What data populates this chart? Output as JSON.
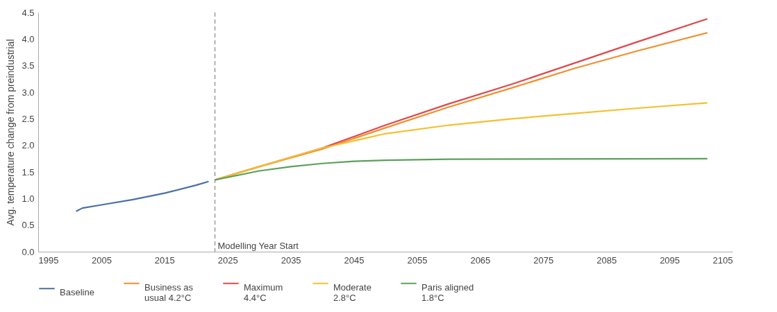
{
  "chart_data": {
    "type": "line",
    "ylabel": "Avg. temperature change from preindustrial",
    "xlim": [
      1995,
      2105
    ],
    "xticks": [
      1995,
      2005,
      2015,
      2025,
      2035,
      2045,
      2055,
      2065,
      2075,
      2085,
      2095,
      2105
    ],
    "ylim": [
      0,
      4.5
    ],
    "yticks": [
      {
        "value": 0,
        "label": "0.0"
      },
      0.5,
      {
        "value": 1,
        "label": "1.0"
      },
      1.5,
      {
        "value": 2,
        "label": "2.0"
      },
      2.5,
      {
        "value": 3,
        "label": "3.0"
      },
      3.5,
      {
        "value": 4,
        "label": "4.0"
      },
      4.5
    ],
    "grid": false,
    "legend": "bottom",
    "line_style": "solid",
    "ref_lines": [
      {
        "axis": "x",
        "value": 2023,
        "label": "Modelling Year Start",
        "color": "#888888",
        "line_style": "dashed"
      }
    ],
    "series": [
      {
        "name": "Baseline",
        "color": "#4a6fa5",
        "x": [
          2001,
          2002,
          2005,
          2010,
          2015,
          2020,
          2022
        ],
        "values": [
          0.76,
          0.82,
          0.88,
          0.98,
          1.1,
          1.25,
          1.32
        ]
      },
      {
        "name": "Business as usual 4.2°C",
        "color": "#f28e2b",
        "x": [
          2023,
          2030,
          2040,
          2050,
          2060,
          2070,
          2080,
          2090,
          2101
        ],
        "values": [
          1.35,
          1.6,
          1.93,
          2.33,
          2.72,
          3.08,
          3.45,
          3.78,
          4.12
        ]
      },
      {
        "name": "Maximum 4.4°C",
        "color": "#e0474c",
        "x": [
          2023,
          2030,
          2040,
          2050,
          2060,
          2070,
          2080,
          2090,
          2101
        ],
        "values": [
          1.35,
          1.6,
          1.95,
          2.38,
          2.78,
          3.15,
          3.55,
          3.95,
          4.38
        ]
      },
      {
        "name": "Moderate 2.8°C",
        "color": "#f2c12e",
        "x": [
          2023,
          2030,
          2040,
          2050,
          2060,
          2070,
          2080,
          2090,
          2101
        ],
        "values": [
          1.35,
          1.6,
          1.95,
          2.22,
          2.38,
          2.5,
          2.6,
          2.7,
          2.8
        ]
      },
      {
        "name": "Paris aligned 1.8°C",
        "color": "#5aa05a",
        "x": [
          2023,
          2030,
          2035,
          2040,
          2045,
          2050,
          2060,
          2101
        ],
        "values": [
          1.35,
          1.52,
          1.6,
          1.66,
          1.7,
          1.72,
          1.74,
          1.75
        ]
      }
    ]
  }
}
